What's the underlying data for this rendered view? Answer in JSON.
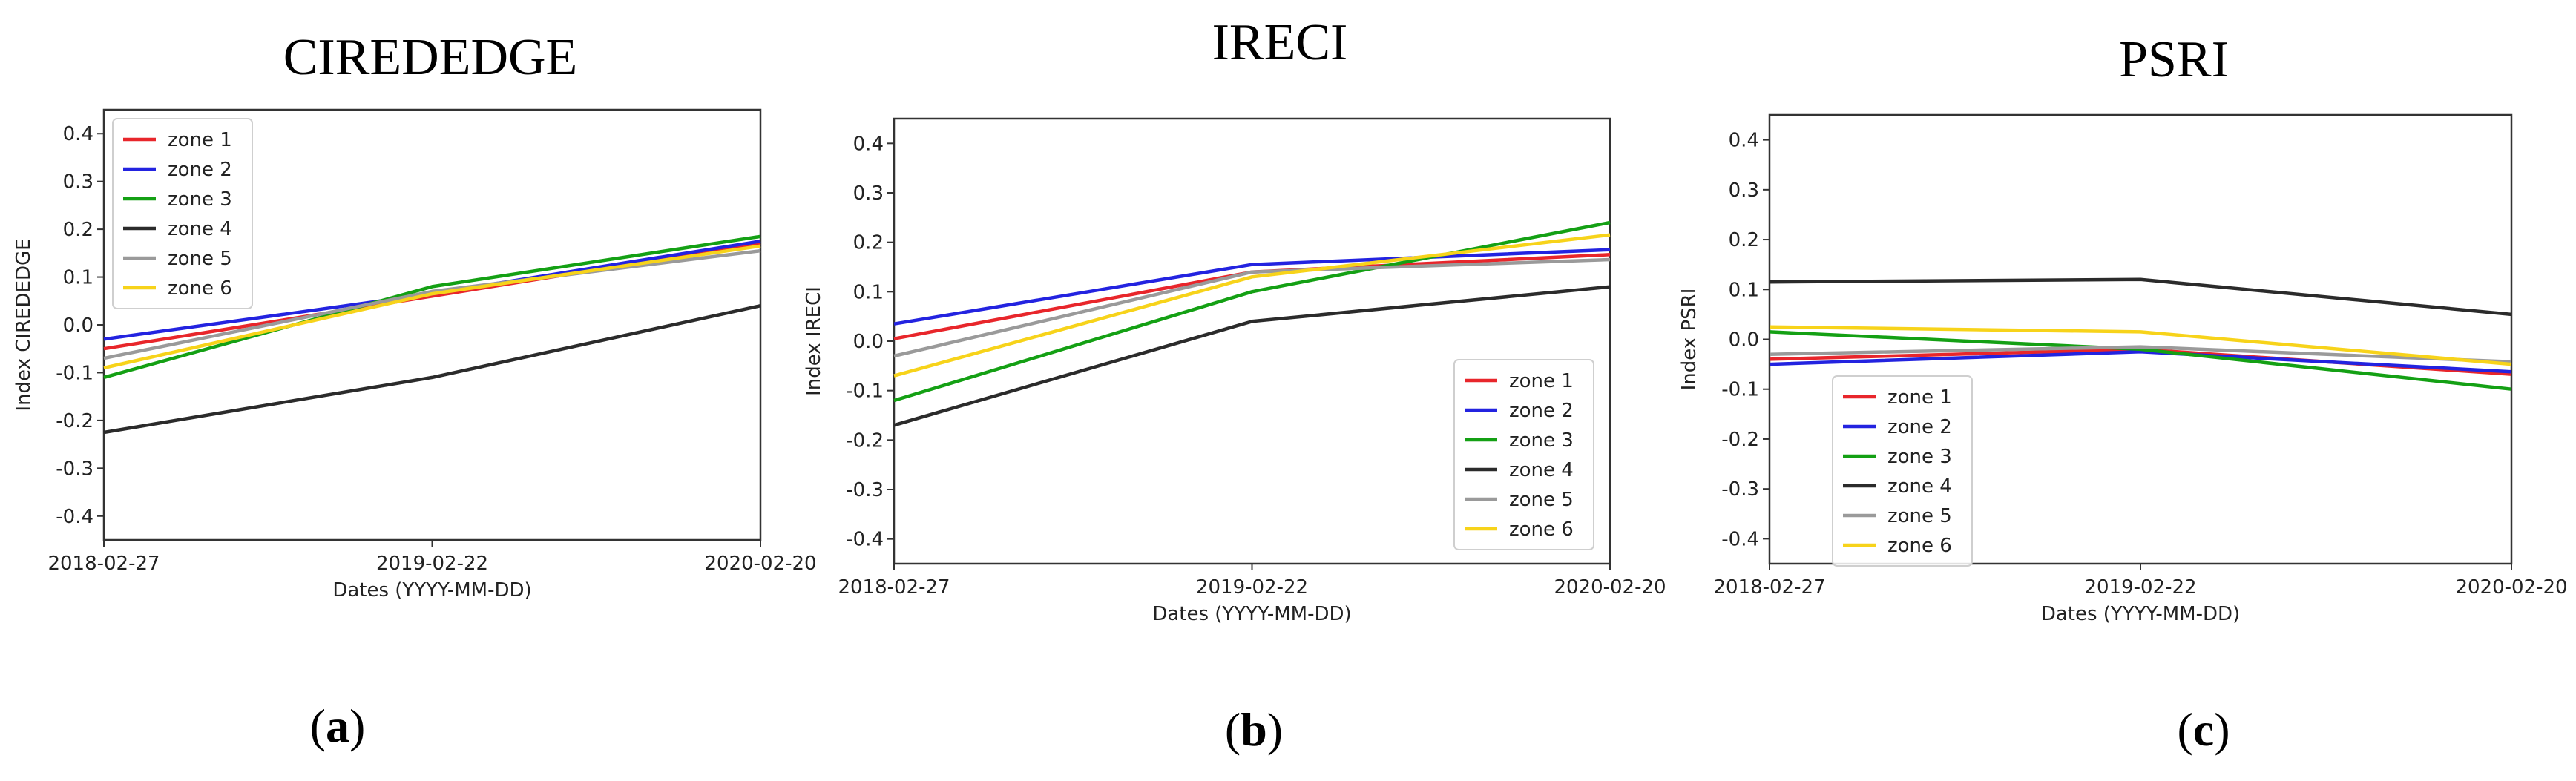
{
  "chart_data": [
    {
      "type": "line",
      "title": "CIREDEDGE",
      "xlabel": "Dates (YYYY-MM-DD)",
      "ylabel": "Index CIREDEDGE",
      "categories": [
        "2018-02-27",
        "2019-02-22",
        "2020-02-20"
      ],
      "ylim": [
        -0.45,
        0.45
      ],
      "yticks": [
        "-0.4",
        "-0.3",
        "-0.2",
        "-0.1",
        "0.0",
        "0.1",
        "0.2",
        "0.3",
        "0.4"
      ],
      "legend_position": "top-left",
      "panel_label": {
        "open": "(",
        "letter": "a",
        "close": ")"
      },
      "series": [
        {
          "name": "zone 1",
          "color": "#e8262b",
          "values": [
            -0.05,
            0.06,
            0.17
          ]
        },
        {
          "name": "zone 2",
          "color": "#2323e0",
          "values": [
            -0.03,
            0.065,
            0.175
          ]
        },
        {
          "name": "zone 3",
          "color": "#14a014",
          "values": [
            -0.11,
            0.08,
            0.185
          ]
        },
        {
          "name": "zone 4",
          "color": "#2b2b2b",
          "values": [
            -0.225,
            -0.11,
            0.04
          ]
        },
        {
          "name": "zone 5",
          "color": "#9a9a9a",
          "values": [
            -0.07,
            0.07,
            0.155
          ]
        },
        {
          "name": "zone 6",
          "color": "#f7d31a",
          "values": [
            -0.09,
            0.065,
            0.165
          ]
        }
      ]
    },
    {
      "type": "line",
      "title": "IRECI",
      "xlabel": "Dates (YYYY-MM-DD)",
      "ylabel": "Index IRECI",
      "categories": [
        "2018-02-27",
        "2019-02-22",
        "2020-02-20"
      ],
      "ylim": [
        -0.45,
        0.45
      ],
      "yticks": [
        "-0.4",
        "-0.3",
        "-0.2",
        "-0.1",
        "0.0",
        "0.1",
        "0.2",
        "0.3",
        "0.4"
      ],
      "legend_position": "bottom-right",
      "panel_label": {
        "open": "(",
        "letter": "b",
        "close": ")"
      },
      "series": [
        {
          "name": "zone 1",
          "color": "#e8262b",
          "values": [
            0.005,
            0.14,
            0.175
          ]
        },
        {
          "name": "zone 2",
          "color": "#2323e0",
          "values": [
            0.035,
            0.155,
            0.185
          ]
        },
        {
          "name": "zone 3",
          "color": "#14a014",
          "values": [
            -0.12,
            0.1,
            0.24
          ]
        },
        {
          "name": "zone 4",
          "color": "#2b2b2b",
          "values": [
            -0.17,
            0.04,
            0.11
          ]
        },
        {
          "name": "zone 5",
          "color": "#9a9a9a",
          "values": [
            -0.03,
            0.14,
            0.165
          ]
        },
        {
          "name": "zone 6",
          "color": "#f7d31a",
          "values": [
            -0.07,
            0.13,
            0.215
          ]
        }
      ]
    },
    {
      "type": "line",
      "title": "PSRI",
      "xlabel": "Dates (YYYY-MM-DD)",
      "ylabel": "Index PSRI",
      "categories": [
        "2018-02-27",
        "2019-02-22",
        "2020-02-20"
      ],
      "ylim": [
        -0.45,
        0.45
      ],
      "yticks": [
        "-0.4",
        "-0.3",
        "-0.2",
        "-0.1",
        "0.0",
        "0.1",
        "0.2",
        "0.3",
        "0.4"
      ],
      "legend_position": "bottom-left",
      "panel_label": {
        "open": "(",
        "letter": "c",
        "close": ")"
      },
      "series": [
        {
          "name": "zone 1",
          "color": "#e8262b",
          "values": [
            -0.04,
            -0.02,
            -0.07
          ]
        },
        {
          "name": "zone 2",
          "color": "#2323e0",
          "values": [
            -0.05,
            -0.025,
            -0.065
          ]
        },
        {
          "name": "zone 3",
          "color": "#14a014",
          "values": [
            0.015,
            -0.02,
            -0.1
          ]
        },
        {
          "name": "zone 4",
          "color": "#2b2b2b",
          "values": [
            0.115,
            0.12,
            0.05
          ]
        },
        {
          "name": "zone 5",
          "color": "#9a9a9a",
          "values": [
            -0.03,
            -0.015,
            -0.045
          ]
        },
        {
          "name": "zone 6",
          "color": "#f7d31a",
          "values": [
            0.025,
            0.015,
            -0.05
          ]
        }
      ]
    }
  ]
}
